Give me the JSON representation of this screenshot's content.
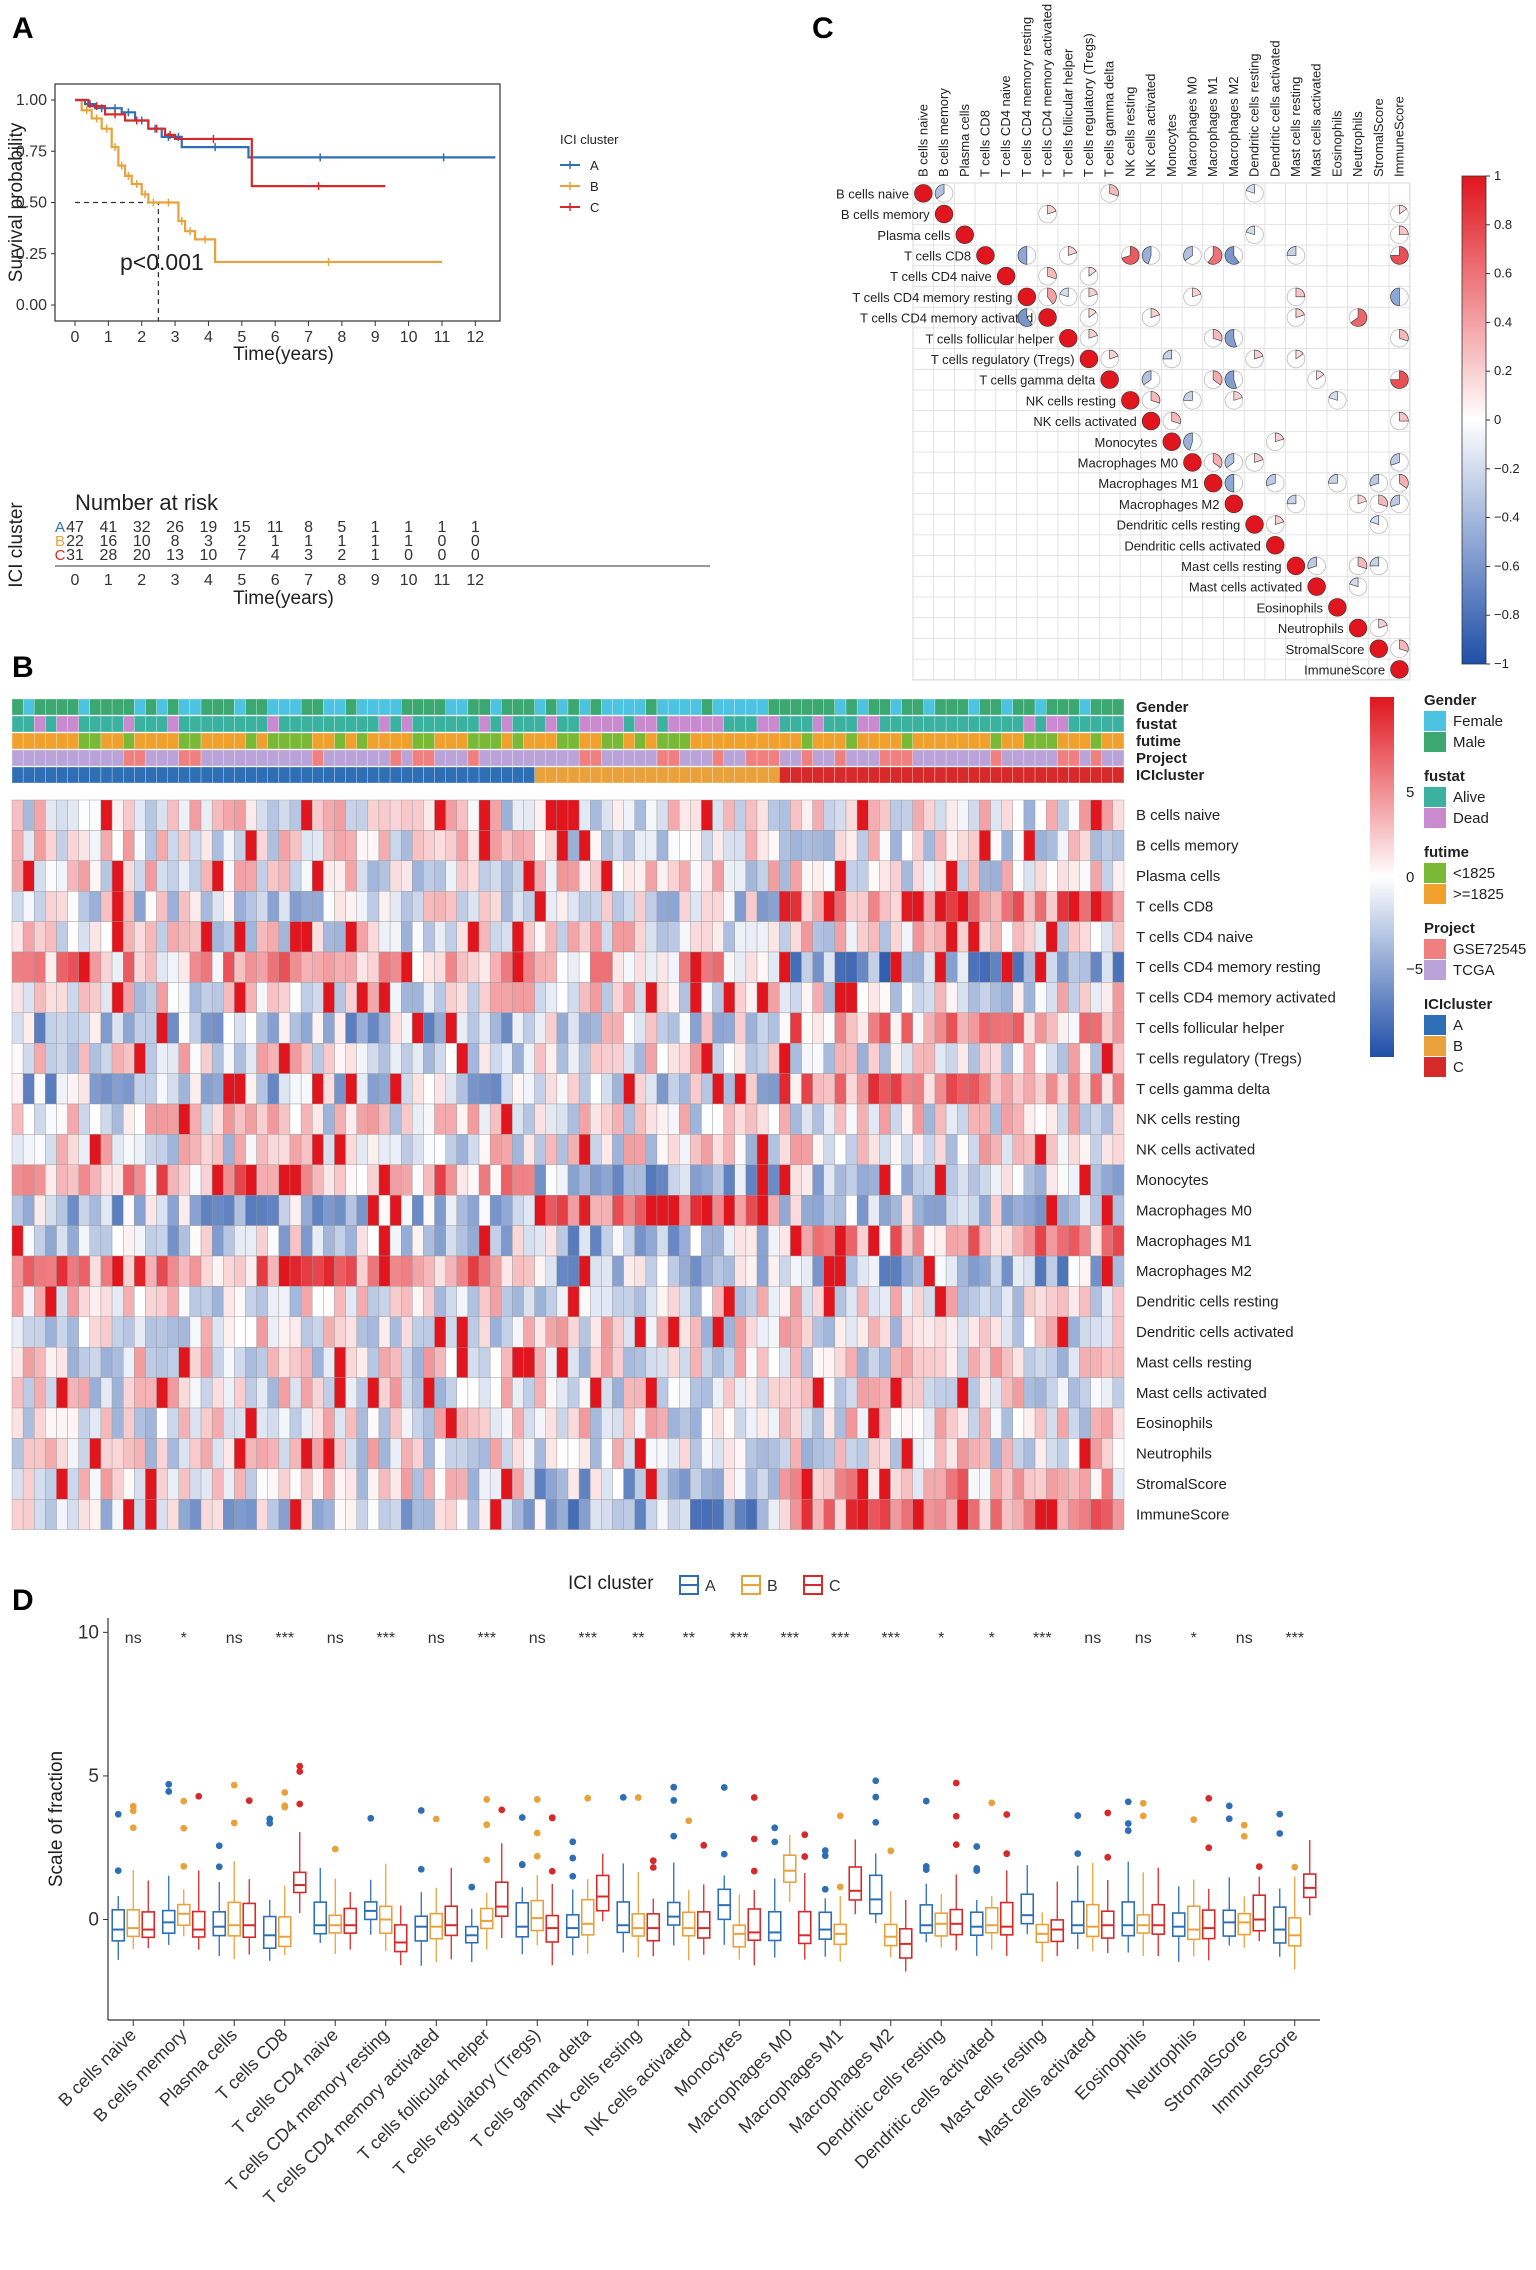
{
  "panels": {
    "A": "A",
    "B": "B",
    "C": "C",
    "D": "D"
  },
  "colors": {
    "A": "#2e6eb5",
    "B": "#e9a23b",
    "C": "#d62a2a",
    "female": "#4cc3e0",
    "male": "#3aa870",
    "alive": "#3bb2a0",
    "dead": "#c98ad0",
    "lt1825": "#7ab935",
    "ge1825": "#f0a12d",
    "gse": "#f08080",
    "tcga": "#b9a3d8",
    "high": "#e0151d",
    "low": "#1f4fa8"
  },
  "chart_data": [
    {
      "id": "A",
      "type": "line",
      "subtype": "kaplan-meier",
      "xlabel": "Time(years)",
      "ylabel": "Survival probability",
      "xlim": [
        0,
        12.5
      ],
      "ylim": [
        0,
        1
      ],
      "xticks": [
        "0",
        "1",
        "2",
        "3",
        "4",
        "5",
        "6",
        "7",
        "8",
        "9",
        "10",
        "11",
        "12"
      ],
      "yticks": [
        "0.00",
        "0.25",
        "0.50",
        "0.75",
        "1.00"
      ],
      "legend_title": "ICI cluster",
      "annotation": "p<0.001",
      "median_marker": {
        "x": 2.5,
        "y": 0.5
      },
      "series": [
        {
          "name": "A",
          "x": [
            0,
            0.3,
            0.6,
            1.0,
            1.4,
            1.8,
            2.2,
            2.6,
            3.0,
            3.2,
            5.2,
            9.5,
            12.6
          ],
          "y": [
            1.0,
            0.98,
            0.96,
            0.96,
            0.94,
            0.9,
            0.86,
            0.82,
            0.82,
            0.77,
            0.72,
            0.72,
            0.72
          ]
        },
        {
          "name": "B",
          "x": [
            0,
            0.2,
            0.5,
            0.8,
            1.1,
            1.3,
            1.5,
            1.7,
            2.0,
            2.2,
            2.5,
            3.1,
            3.3,
            3.6,
            4.2,
            11.0
          ],
          "y": [
            1.0,
            0.95,
            0.91,
            0.86,
            0.77,
            0.68,
            0.63,
            0.59,
            0.54,
            0.5,
            0.5,
            0.41,
            0.36,
            0.32,
            0.21,
            0.21
          ]
        },
        {
          "name": "C",
          "x": [
            0,
            0.4,
            0.9,
            1.5,
            2.2,
            2.7,
            3.0,
            5.3,
            9.3
          ],
          "y": [
            1.0,
            0.97,
            0.93,
            0.9,
            0.86,
            0.83,
            0.81,
            0.58,
            0.58
          ]
        }
      ]
    },
    {
      "id": "A-risk",
      "type": "table",
      "title": "Number at risk",
      "ylabel": "ICI cluster",
      "xlabel": "Time(years)",
      "columns": [
        "0",
        "1",
        "2",
        "3",
        "4",
        "5",
        "6",
        "7",
        "8",
        "9",
        "10",
        "11",
        "12"
      ],
      "rows": [
        {
          "name": "A",
          "values": [
            "47",
            "41",
            "32",
            "26",
            "19",
            "15",
            "11",
            "8",
            "5",
            "1",
            "1",
            "1",
            "1"
          ]
        },
        {
          "name": "B",
          "values": [
            "22",
            "16",
            "10",
            "8",
            "3",
            "2",
            "1",
            "1",
            "1",
            "1",
            "1",
            "0",
            "0"
          ]
        },
        {
          "name": "C",
          "values": [
            "31",
            "28",
            "20",
            "13",
            "10",
            "7",
            "4",
            "3",
            "2",
            "1",
            "0",
            "0",
            "0"
          ]
        }
      ]
    },
    {
      "id": "C",
      "type": "heatmap",
      "subtype": "correlation-pie",
      "labels": [
        "B cells naive",
        "B cells memory",
        "Plasma cells",
        "T cells CD8",
        "T cells CD4 naive",
        "T cells CD4 memory resting",
        "T cells CD4 memory activated",
        "T cells follicular helper",
        "T cells regulatory (Tregs)",
        "T cells gamma delta",
        "NK cells resting",
        "NK cells activated",
        "Monocytes",
        "Macrophages M0",
        "Macrophages M1",
        "Macrophages M2",
        "Dendritic cells resting",
        "Dendritic cells activated",
        "Mast cells resting",
        "Mast cells activated",
        "Eosinophils",
        "Neutrophils",
        "StromalScore",
        "ImmuneScore"
      ],
      "colorbar": [
        "1",
        "0.8",
        "0.6",
        "0.4",
        "0.2",
        "0",
        "−0.2",
        "−0.4",
        "−0.6",
        "−0.8",
        "−1"
      ],
      "cells": [
        [
          0,
          1,
          -0.35
        ],
        [
          0,
          9,
          0.3
        ],
        [
          0,
          16,
          -0.2
        ],
        [
          1,
          6,
          0.2
        ],
        [
          1,
          23,
          0.15
        ],
        [
          2,
          16,
          -0.2
        ],
        [
          2,
          23,
          0.25
        ],
        [
          3,
          5,
          -0.5
        ],
        [
          3,
          7,
          0.2
        ],
        [
          3,
          10,
          0.7
        ],
        [
          3,
          11,
          -0.45
        ],
        [
          3,
          13,
          -0.35
        ],
        [
          3,
          14,
          0.6
        ],
        [
          3,
          15,
          -0.6
        ],
        [
          3,
          18,
          -0.25
        ],
        [
          3,
          23,
          0.75
        ],
        [
          4,
          6,
          0.3
        ],
        [
          4,
          8,
          0.15
        ],
        [
          5,
          6,
          0.4
        ],
        [
          5,
          7,
          -0.2
        ],
        [
          5,
          8,
          0.2
        ],
        [
          5,
          13,
          0.2
        ],
        [
          5,
          18,
          0.25
        ],
        [
          5,
          23,
          -0.5
        ],
        [
          6,
          5,
          -0.6
        ],
        [
          6,
          8,
          0.15
        ],
        [
          6,
          11,
          0.2
        ],
        [
          6,
          18,
          0.2
        ],
        [
          6,
          21,
          0.65
        ],
        [
          7,
          8,
          0.2
        ],
        [
          7,
          14,
          0.3
        ],
        [
          7,
          15,
          -0.55
        ],
        [
          7,
          23,
          0.3
        ],
        [
          8,
          9,
          0.2
        ],
        [
          8,
          12,
          -0.25
        ],
        [
          8,
          16,
          0.2
        ],
        [
          8,
          18,
          0.15
        ],
        [
          9,
          11,
          -0.35
        ],
        [
          9,
          14,
          0.35
        ],
        [
          9,
          15,
          -0.55
        ],
        [
          9,
          19,
          0.15
        ],
        [
          9,
          23,
          0.75
        ],
        [
          10,
          11,
          0.3
        ],
        [
          10,
          13,
          -0.25
        ],
        [
          10,
          15,
          0.2
        ],
        [
          10,
          20,
          -0.2
        ],
        [
          11,
          12,
          0.3
        ],
        [
          11,
          23,
          0.25
        ],
        [
          12,
          13,
          -0.45
        ],
        [
          12,
          17,
          0.2
        ],
        [
          13,
          14,
          0.35
        ],
        [
          13,
          15,
          -0.35
        ],
        [
          13,
          16,
          0.2
        ],
        [
          13,
          23,
          -0.3
        ],
        [
          14,
          15,
          -0.5
        ],
        [
          14,
          17,
          -0.3
        ],
        [
          14,
          20,
          -0.25
        ],
        [
          14,
          22,
          -0.3
        ],
        [
          14,
          23,
          0.35
        ],
        [
          15,
          18,
          -0.25
        ],
        [
          15,
          21,
          0.2
        ],
        [
          15,
          22,
          0.3
        ],
        [
          15,
          23,
          -0.3
        ],
        [
          16,
          17,
          0.2
        ],
        [
          16,
          22,
          -0.2
        ],
        [
          18,
          19,
          -0.3
        ],
        [
          18,
          21,
          0.3
        ],
        [
          18,
          22,
          -0.25
        ],
        [
          19,
          21,
          -0.2
        ],
        [
          21,
          22,
          0.2
        ],
        [
          22,
          23,
          0.3
        ]
      ]
    },
    {
      "id": "B",
      "type": "heatmap",
      "rows": [
        "B cells naive",
        "B cells memory",
        "Plasma cells",
        "T cells CD8",
        "T cells CD4 naive",
        "T cells CD4 memory resting",
        "T cells CD4 memory activated",
        "T cells follicular helper",
        "T cells regulatory (Tregs)",
        "T cells gamma delta",
        "NK cells resting",
        "NK cells activated",
        "Monocytes",
        "Macrophages M0",
        "Macrophages M1",
        "Macrophages M2",
        "Dendritic cells resting",
        "Dendritic cells activated",
        "Mast cells resting",
        "Mast cells activated",
        "Eosinophils",
        "Neutrophils",
        "StromalScore",
        "ImmuneScore"
      ],
      "annotation_rows": [
        "Gender",
        "fustat",
        "futime",
        "Project",
        "ICIcluster"
      ],
      "samples_per_cluster": {
        "A": 47,
        "B": 22,
        "C": 31
      },
      "colorbar": [
        "5",
        "0",
        "−5"
      ],
      "legend": {
        "Gender": [
          "Female",
          "Male"
        ],
        "fustat": [
          "Alive",
          "Dead"
        ],
        "futime": [
          "<1825",
          ">=1825"
        ],
        "Project": [
          "GSE72545",
          "TCGA"
        ],
        "ICIcluster": [
          "A",
          "B",
          "C"
        ]
      }
    },
    {
      "id": "D",
      "type": "box",
      "ylabel": "Scale of fraction",
      "legend_title": "ICI cluster",
      "legend": [
        "A",
        "B",
        "C"
      ],
      "ylim": [
        -3.5,
        10.5
      ],
      "yticks": [
        "0",
        "5",
        "10"
      ],
      "categories": [
        "B cells naive",
        "B cells memory",
        "Plasma cells",
        "T cells CD8",
        "T cells CD4 naive",
        "T cells CD4 memory resting",
        "T cells CD4 memory activated",
        "T cells follicular helper",
        "T cells regulatory (Tregs)",
        "T cells gamma delta",
        "NK cells resting",
        "NK cells activated",
        "Monocytes",
        "Macrophages M0",
        "Macrophages M1",
        "Macrophages M2",
        "Dendritic cells resting",
        "Dendritic cells activated",
        "Mast cells resting",
        "Mast cells activated",
        "Eosinophils",
        "Neutrophils",
        "StromalScore",
        "ImmuneScore"
      ],
      "significance": [
        "ns",
        "*",
        "ns",
        "***",
        "ns",
        "***",
        "ns",
        "***",
        "ns",
        "***",
        "**",
        "**",
        "***",
        "***",
        "***",
        "***",
        "*",
        "*",
        "***",
        "ns",
        "ns",
        "*",
        "ns",
        "***"
      ],
      "medians": {
        "A": [
          -0.35,
          -0.1,
          -0.25,
          -0.55,
          -0.2,
          0.3,
          -0.25,
          -0.55,
          -0.25,
          -0.3,
          -0.2,
          0.1,
          0.5,
          -0.45,
          -0.35,
          0.7,
          -0.2,
          -0.25,
          0.15,
          -0.2,
          -0.2,
          -0.25,
          -0.1,
          -0.35
        ],
        "B": [
          -0.3,
          0.2,
          -0.2,
          -0.6,
          -0.2,
          0.0,
          -0.25,
          -0.05,
          0.05,
          -0.15,
          -0.3,
          -0.3,
          -0.5,
          1.7,
          -0.5,
          -0.6,
          -0.15,
          -0.2,
          -0.5,
          -0.25,
          -0.2,
          -0.35,
          -0.1,
          -0.55
        ],
        "C": [
          -0.35,
          -0.35,
          -0.2,
          1.2,
          -0.2,
          -0.8,
          -0.2,
          0.45,
          -0.3,
          0.8,
          -0.3,
          -0.3,
          -0.45,
          -0.55,
          1.0,
          -0.85,
          -0.15,
          -0.25,
          -0.35,
          -0.2,
          -0.2,
          -0.3,
          0.0,
          1.1
        ]
      }
    }
  ]
}
